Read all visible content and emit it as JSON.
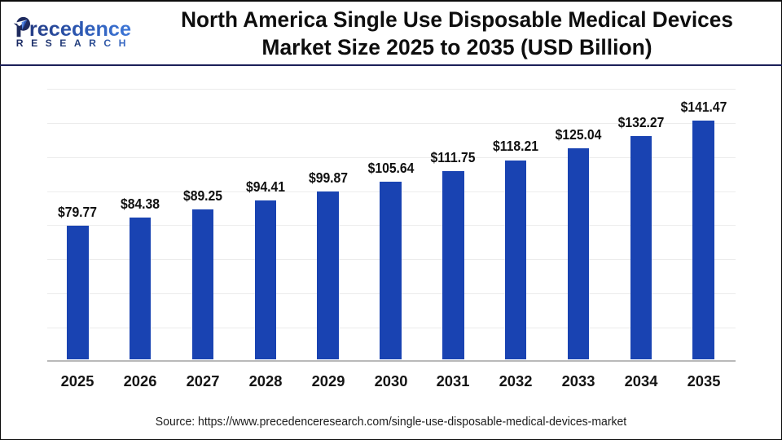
{
  "header": {
    "title_line1": "North America Single Use Disposable Medical Devices",
    "title_line2": "Market Size 2025 to 2035 (USD Billion)"
  },
  "logo": {
    "brand_word_initial": "P",
    "brand_word_rest": "recedence",
    "brand_subword": "RESEARCH",
    "mark_icon": "leaf-in-p-icon",
    "navy": "#1d2558",
    "blue": "#3d77d8"
  },
  "chart_data": {
    "type": "bar",
    "title": "North America Single Use Disposable Medical Devices Market Size 2025 to 2035 (USD Billion)",
    "categories": [
      "2025",
      "2026",
      "2027",
      "2028",
      "2029",
      "2030",
      "2031",
      "2032",
      "2033",
      "2034",
      "2035"
    ],
    "values": [
      79.77,
      84.38,
      89.25,
      94.41,
      99.87,
      105.64,
      111.75,
      118.21,
      125.04,
      132.27,
      141.47
    ],
    "value_label_prefix": "$",
    "unit": "USD Billion",
    "bar_color": "#1943b2",
    "grid_color": "#ececec",
    "axis_color": "#b9b9b9",
    "grid": true,
    "gridline_values": [
      20,
      40,
      60,
      80,
      100,
      120,
      140,
      160
    ],
    "ylim": [
      0,
      160
    ],
    "xlabel": "",
    "ylabel": "",
    "legend_position": "none"
  },
  "footer": {
    "source_text": "Source: https://www.precedenceresearch.com/single-use-disposable-medical-devices-market"
  }
}
